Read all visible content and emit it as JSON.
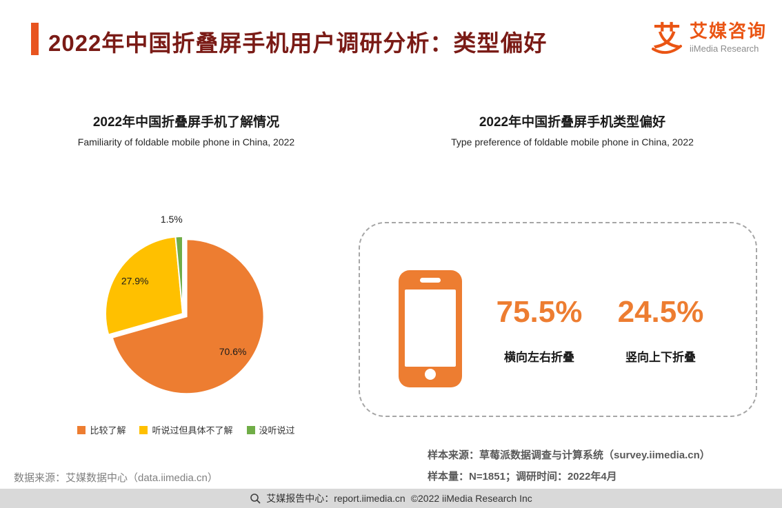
{
  "header": {
    "title": "2022年中国折叠屏手机用户调研分析：类型偏好",
    "title_color": "#7A1B16",
    "accent_color": "#E8541F",
    "logo": {
      "mark": "艾",
      "name_cn": "艾媒咨询",
      "name_en": "iiMedia Research",
      "brand_color": "#EA5514"
    }
  },
  "left_panel": {
    "source_note": "数据来源：艾媒数据中心（data.iimedia.cn）"
  },
  "right_panel": {
    "accent_color": "#ED7D31",
    "sample_source": "样本来源：草莓派数据调查与计算系统（survey.iimedia.cn）",
    "sample_info": "样本量：N=1851；调研时间：2022年4月"
  },
  "footer": {
    "center_text": "艾媒报告中心：report.iimedia.cn",
    "copyright": "©2022 iiMedia Research Inc"
  },
  "chart_data": [
    {
      "type": "pie",
      "title": "2022年中国折叠屏手机了解情况",
      "subtitle": "Familiarity of foldable mobile phone in China, 2022",
      "labels": [
        "比较了解",
        "听说过但具体不了解",
        "没听说过"
      ],
      "values": [
        70.6,
        27.9,
        1.5
      ],
      "data_labels": [
        "70.6%",
        "27.9%",
        "1.5%"
      ],
      "colors": [
        "#ED7D31",
        "#FFC000",
        "#70AD47"
      ],
      "start_angle_deg": 0,
      "direction": "clockwise",
      "legend_position": "bottom"
    },
    {
      "type": "bar",
      "title": "2022年中国折叠屏手机类型偏好",
      "subtitle": "Type preference of foldable mobile phone in China, 2022",
      "categories": [
        "横向左右折叠",
        "竖向上下折叠"
      ],
      "values": [
        75.5,
        24.5
      ],
      "display_values": [
        "75.5%",
        "24.5%"
      ],
      "unit": "%"
    }
  ]
}
